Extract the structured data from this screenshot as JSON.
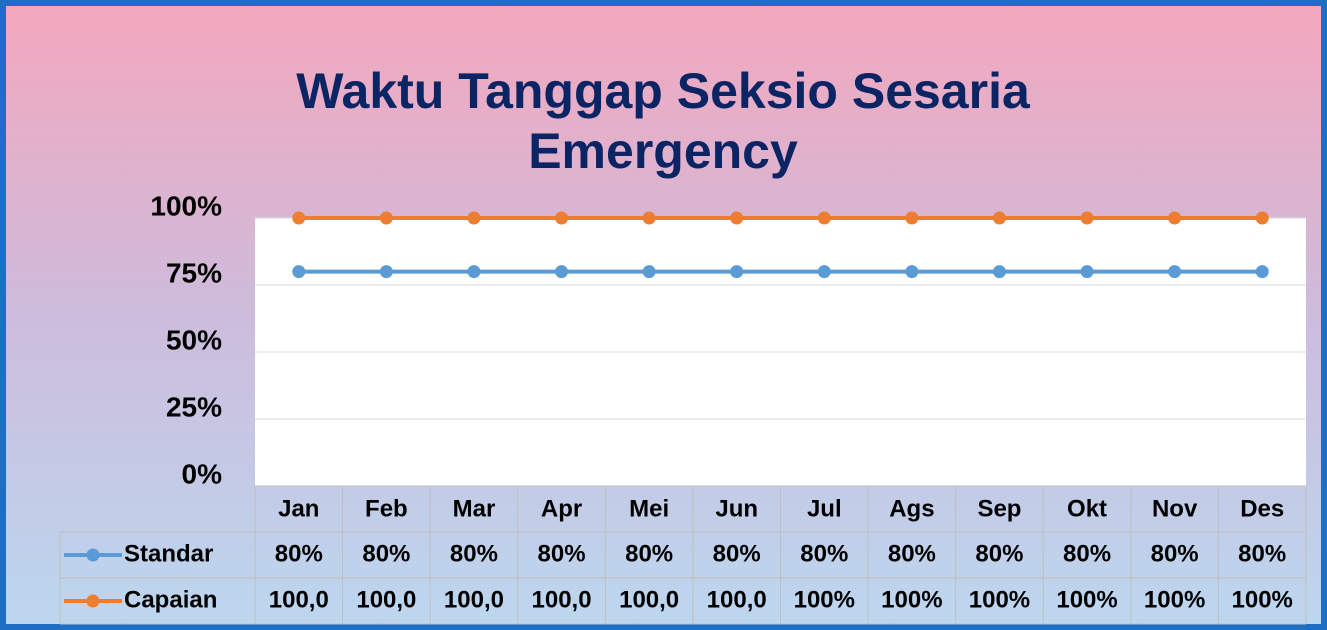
{
  "chart_data": {
    "type": "line",
    "title": "Waktu Tanggap Seksio Sesaria Emergency",
    "categories": [
      "Jan",
      "Feb",
      "Mar",
      "Apr",
      "Mei",
      "Jun",
      "Jul",
      "Ags",
      "Sep",
      "Okt",
      "Nov",
      "Des"
    ],
    "series": [
      {
        "name": "Standar",
        "color": "#5b9bd5",
        "values": [
          80,
          80,
          80,
          80,
          80,
          80,
          80,
          80,
          80,
          80,
          80,
          80
        ],
        "value_labels": [
          "80%",
          "80%",
          "80%",
          "80%",
          "80%",
          "80%",
          "80%",
          "80%",
          "80%",
          "80%",
          "80%",
          "80%"
        ]
      },
      {
        "name": "Capaian",
        "color": "#ed7d31",
        "values": [
          100,
          100,
          100,
          100,
          100,
          100,
          100,
          100,
          100,
          100,
          100,
          100
        ],
        "value_labels": [
          "100,0",
          "100,0",
          "100,0",
          "100,0",
          "100,0",
          "100,0",
          "100%",
          "100%",
          "100%",
          "100%",
          "100%",
          "100%"
        ]
      }
    ],
    "ylim": [
      0,
      100
    ],
    "yticks": [
      {
        "value": 0,
        "label": "0%"
      },
      {
        "value": 25,
        "label": "25%"
      },
      {
        "value": 50,
        "label": "50%"
      },
      {
        "value": 75,
        "label": "75%"
      },
      {
        "value": 100,
        "label": "100%"
      }
    ],
    "grid": true,
    "legend": "data-table"
  }
}
